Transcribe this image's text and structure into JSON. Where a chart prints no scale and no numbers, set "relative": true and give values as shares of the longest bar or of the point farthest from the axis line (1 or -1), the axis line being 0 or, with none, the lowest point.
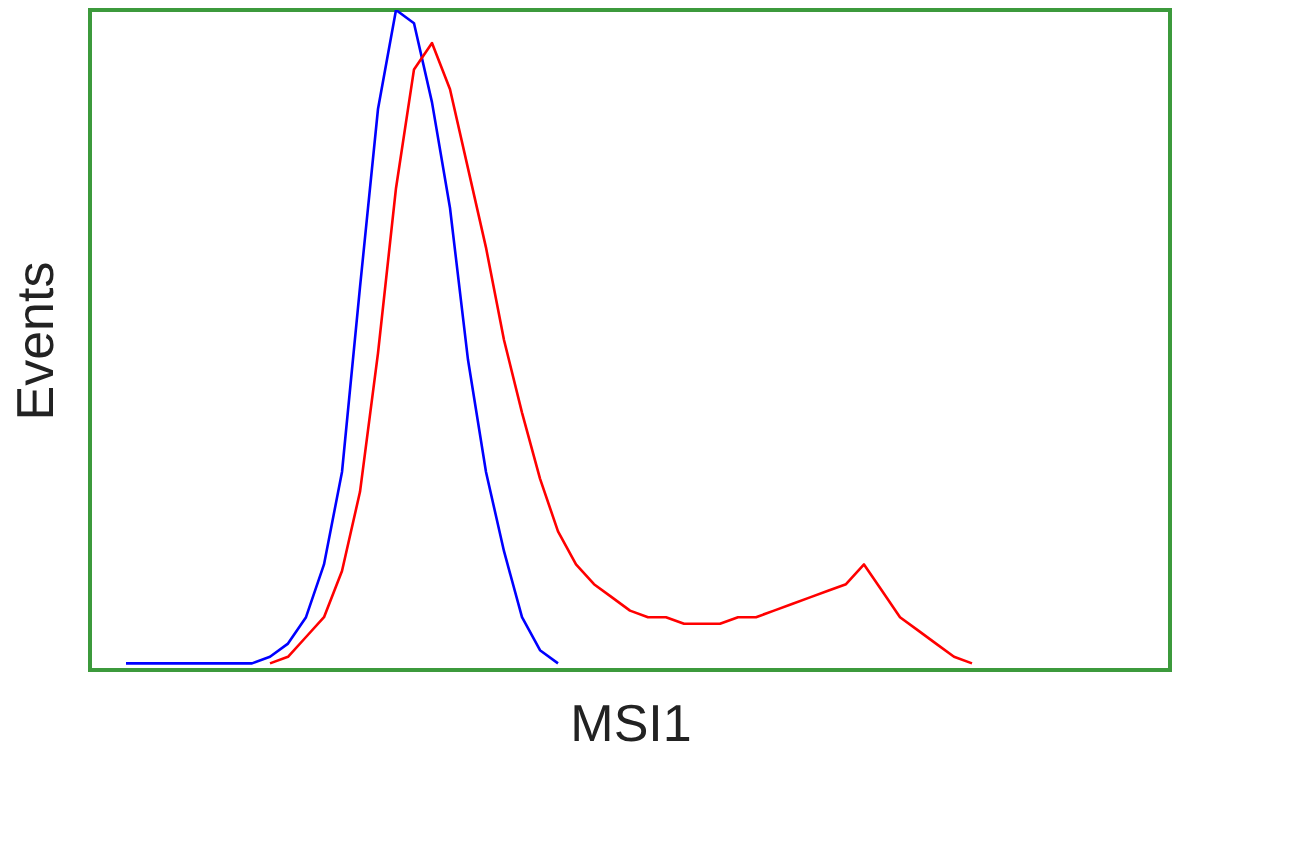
{
  "chart_data": {
    "type": "line",
    "relative": true,
    "xlabel": "MSI1",
    "ylabel": "Events",
    "categories": [
      null,
      null,
      null,
      null,
      null,
      null,
      null,
      null,
      null,
      null,
      null,
      null,
      null,
      null,
      null,
      null,
      null,
      null,
      null,
      null,
      null,
      null,
      null,
      null,
      null,
      null,
      null,
      null,
      null,
      null,
      null,
      null,
      null,
      null,
      null,
      null,
      null,
      null,
      null,
      null,
      null,
      null,
      null,
      null,
      null,
      null,
      null,
      null,
      null,
      null,
      null,
      null,
      null,
      null,
      null,
      null,
      null,
      null,
      null,
      null,
      null
    ],
    "series": [
      {
        "color": "#0000ff",
        "values": [
          null,
          null,
          0.01,
          0.01,
          0.01,
          0.01,
          0.01,
          0.01,
          0.01,
          0.01,
          0.02,
          0.04,
          0.08,
          0.16,
          0.3,
          0.58,
          0.85,
          1.0,
          0.98,
          0.86,
          0.7,
          0.47,
          0.3,
          0.18,
          0.08,
          0.03,
          0.01,
          null,
          null,
          null,
          null,
          null,
          null,
          null,
          null,
          null,
          null,
          null,
          null,
          null,
          null,
          null,
          null,
          null,
          null,
          null,
          null,
          null,
          null,
          null,
          null,
          null,
          null,
          null,
          null,
          null,
          null,
          null,
          null,
          null,
          null
        ]
      },
      {
        "color": "#ff0000",
        "values": [
          null,
          null,
          null,
          null,
          null,
          null,
          null,
          null,
          null,
          null,
          0.01,
          0.02,
          0.05,
          0.08,
          0.15,
          0.27,
          0.48,
          0.73,
          0.91,
          0.95,
          0.88,
          0.76,
          0.64,
          0.5,
          0.39,
          0.29,
          0.21,
          0.16,
          0.13,
          0.11,
          0.09,
          0.08,
          0.08,
          0.07,
          0.07,
          0.07,
          0.08,
          0.08,
          0.09,
          0.1,
          0.11,
          0.12,
          0.13,
          0.16,
          0.12,
          0.08,
          0.06,
          0.04,
          0.02,
          0.01,
          null,
          null,
          null,
          null,
          null,
          null,
          null,
          null,
          null,
          null,
          null
        ]
      }
    ]
  }
}
